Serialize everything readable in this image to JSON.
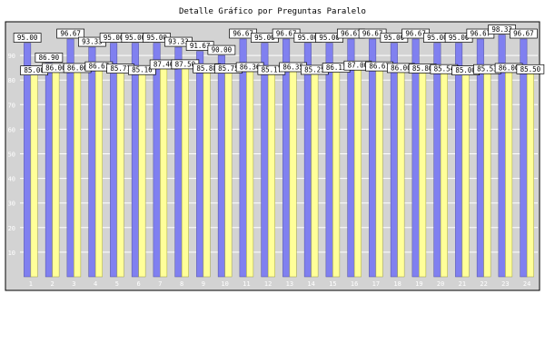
{
  "chart_data": {
    "type": "bar",
    "title": "Detalle Gráfico por Preguntas Paralelo",
    "xlabel": "",
    "ylabel": "",
    "ylim": [
      0,
      100
    ],
    "yticks": [
      10,
      20,
      30,
      40,
      50,
      60,
      70,
      80,
      90
    ],
    "grid": true,
    "legend": "none",
    "categories": [
      "1",
      "2",
      "3",
      "4",
      "5",
      "6",
      "7",
      "8",
      "9",
      "10",
      "11",
      "12",
      "13",
      "14",
      "15",
      "16",
      "17",
      "18",
      "19",
      "20",
      "21",
      "22",
      "23",
      "24"
    ],
    "series": [
      {
        "color": "#8080f0",
        "values": [
          95.0,
          86.9,
          96.67,
          93.33,
          95.0,
          95.0,
          95.0,
          93.33,
          91.67,
          90.0,
          96.67,
          95.0,
          96.67,
          95.0,
          95.0,
          96.67,
          96.67,
          95.0,
          96.67,
          95.0,
          95.0,
          96.67,
          98.33,
          96.67
        ]
      },
      {
        "color": "#ffff99",
        "values": [
          85.0,
          86.0,
          86.0,
          86.67,
          85.77,
          85.16,
          87.46,
          87.5,
          85.88,
          85.75,
          86.36,
          85.17,
          86.35,
          85.25,
          86.13,
          87.0,
          86.67,
          86.0,
          85.8,
          85.54,
          85.0,
          85.53,
          86.0,
          85.5
        ]
      }
    ]
  }
}
